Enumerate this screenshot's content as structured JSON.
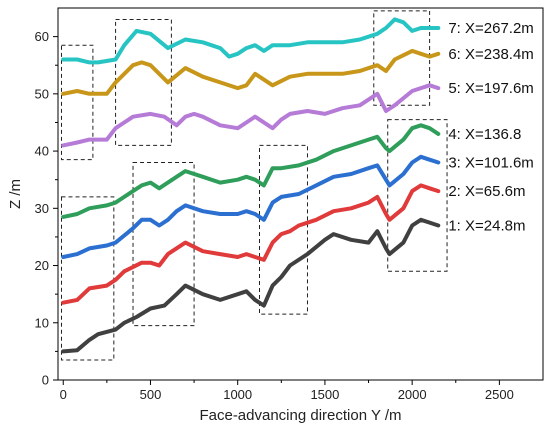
{
  "chart_data": {
    "type": "line",
    "xlabel": "Face-advancing direction Y /m",
    "ylabel": "Z /m",
    "xlim": [
      -30,
      2750
    ],
    "ylim": [
      0,
      65
    ],
    "xticks": [
      0,
      500,
      1000,
      1500,
      2000,
      2500
    ],
    "yticks": [
      0,
      10,
      20,
      30,
      40,
      50,
      60
    ],
    "legend_placement": "right, each label beside the end of its curve",
    "series": [
      {
        "name": "1: X=24.8m",
        "color": "#404040",
        "points": [
          [
            0,
            5
          ],
          [
            80,
            5.2
          ],
          [
            150,
            7
          ],
          [
            200,
            8
          ],
          [
            300,
            8.8
          ],
          [
            350,
            10
          ],
          [
            420,
            11
          ],
          [
            500,
            12.5
          ],
          [
            580,
            13
          ],
          [
            650,
            15
          ],
          [
            700,
            16.5
          ],
          [
            800,
            15
          ],
          [
            900,
            14
          ],
          [
            1000,
            15
          ],
          [
            1050,
            15.5
          ],
          [
            1100,
            14
          ],
          [
            1150,
            13
          ],
          [
            1200,
            16.5
          ],
          [
            1250,
            18
          ],
          [
            1300,
            20
          ],
          [
            1400,
            22
          ],
          [
            1500,
            24.5
          ],
          [
            1550,
            25.5
          ],
          [
            1650,
            24.5
          ],
          [
            1750,
            24
          ],
          [
            1800,
            26
          ],
          [
            1850,
            23
          ],
          [
            1870,
            22
          ],
          [
            1950,
            24
          ],
          [
            2000,
            27
          ],
          [
            2050,
            28
          ],
          [
            2100,
            27.5
          ],
          [
            2150,
            27
          ]
        ]
      },
      {
        "name": "2: X=65.6m",
        "color": "#e03a3a",
        "points": [
          [
            0,
            13.5
          ],
          [
            80,
            14
          ],
          [
            150,
            16
          ],
          [
            250,
            16.5
          ],
          [
            300,
            17.5
          ],
          [
            350,
            19
          ],
          [
            450,
            20.5
          ],
          [
            500,
            20.5
          ],
          [
            550,
            20
          ],
          [
            600,
            22
          ],
          [
            700,
            24
          ],
          [
            800,
            22.5
          ],
          [
            900,
            22
          ],
          [
            1000,
            21.5
          ],
          [
            1050,
            22
          ],
          [
            1100,
            21.5
          ],
          [
            1150,
            21
          ],
          [
            1200,
            24
          ],
          [
            1250,
            25.5
          ],
          [
            1300,
            26
          ],
          [
            1350,
            27
          ],
          [
            1450,
            28
          ],
          [
            1550,
            29.5
          ],
          [
            1650,
            30
          ],
          [
            1750,
            31
          ],
          [
            1800,
            32
          ],
          [
            1850,
            29
          ],
          [
            1870,
            28
          ],
          [
            1950,
            30
          ],
          [
            2000,
            33
          ],
          [
            2050,
            34
          ],
          [
            2100,
            33.5
          ],
          [
            2150,
            33
          ]
        ]
      },
      {
        "name": "3: X=101.6m",
        "color": "#2b6fd0",
        "points": [
          [
            0,
            21.5
          ],
          [
            80,
            22
          ],
          [
            150,
            23
          ],
          [
            250,
            23.5
          ],
          [
            300,
            24
          ],
          [
            400,
            26.5
          ],
          [
            450,
            28
          ],
          [
            500,
            28
          ],
          [
            550,
            27
          ],
          [
            600,
            28
          ],
          [
            650,
            29.5
          ],
          [
            700,
            30.5
          ],
          [
            800,
            29.5
          ],
          [
            900,
            29
          ],
          [
            1000,
            29
          ],
          [
            1050,
            29.5
          ],
          [
            1100,
            29
          ],
          [
            1150,
            28
          ],
          [
            1200,
            31
          ],
          [
            1250,
            32
          ],
          [
            1350,
            32.5
          ],
          [
            1450,
            34
          ],
          [
            1550,
            35.5
          ],
          [
            1650,
            36
          ],
          [
            1750,
            37
          ],
          [
            1800,
            37.5
          ],
          [
            1850,
            35
          ],
          [
            1870,
            34
          ],
          [
            1950,
            36
          ],
          [
            2000,
            38
          ],
          [
            2050,
            39
          ],
          [
            2100,
            38.5
          ],
          [
            2150,
            38
          ]
        ]
      },
      {
        "name": "4: X=136.8",
        "color": "#2e9e5a",
        "points": [
          [
            0,
            28.5
          ],
          [
            80,
            29
          ],
          [
            150,
            30
          ],
          [
            250,
            30.5
          ],
          [
            300,
            31
          ],
          [
            400,
            33
          ],
          [
            450,
            34
          ],
          [
            500,
            34.5
          ],
          [
            550,
            33.5
          ],
          [
            600,
            34.5
          ],
          [
            650,
            35.5
          ],
          [
            700,
            36.5
          ],
          [
            800,
            35.5
          ],
          [
            900,
            34.5
          ],
          [
            1000,
            35
          ],
          [
            1050,
            35.5
          ],
          [
            1100,
            35
          ],
          [
            1150,
            34
          ],
          [
            1200,
            37
          ],
          [
            1250,
            37
          ],
          [
            1350,
            37.5
          ],
          [
            1450,
            38.5
          ],
          [
            1550,
            40
          ],
          [
            1650,
            41
          ],
          [
            1750,
            42
          ],
          [
            1800,
            42.5
          ],
          [
            1850,
            40.5
          ],
          [
            1870,
            40
          ],
          [
            1950,
            42
          ],
          [
            2000,
            44
          ],
          [
            2050,
            44.5
          ],
          [
            2100,
            44
          ],
          [
            2150,
            43
          ]
        ]
      },
      {
        "name": "5: X=197.6m",
        "color": "#b57bd6",
        "points": [
          [
            0,
            41
          ],
          [
            80,
            41.5
          ],
          [
            150,
            42
          ],
          [
            250,
            42
          ],
          [
            300,
            44
          ],
          [
            400,
            46
          ],
          [
            500,
            46.5
          ],
          [
            580,
            46
          ],
          [
            650,
            44.5
          ],
          [
            700,
            46
          ],
          [
            750,
            46.5
          ],
          [
            800,
            46
          ],
          [
            900,
            44.5
          ],
          [
            1000,
            44
          ],
          [
            1050,
            45
          ],
          [
            1100,
            46
          ],
          [
            1200,
            44
          ],
          [
            1250,
            45.5
          ],
          [
            1300,
            46.5
          ],
          [
            1400,
            47
          ],
          [
            1500,
            46.5
          ],
          [
            1600,
            47.5
          ],
          [
            1700,
            48
          ],
          [
            1800,
            50
          ],
          [
            1850,
            47
          ],
          [
            1900,
            48
          ],
          [
            2000,
            50.5
          ],
          [
            2050,
            51
          ],
          [
            2100,
            51.5
          ],
          [
            2150,
            51
          ]
        ]
      },
      {
        "name": "6: X=238.4m",
        "color": "#c8971a",
        "points": [
          [
            0,
            50
          ],
          [
            80,
            50.5
          ],
          [
            150,
            50
          ],
          [
            250,
            50
          ],
          [
            300,
            52
          ],
          [
            400,
            55
          ],
          [
            450,
            55.5
          ],
          [
            500,
            55
          ],
          [
            600,
            52
          ],
          [
            700,
            54.5
          ],
          [
            800,
            53
          ],
          [
            900,
            52
          ],
          [
            1000,
            51
          ],
          [
            1050,
            51.5
          ],
          [
            1100,
            53.5
          ],
          [
            1200,
            51.5
          ],
          [
            1300,
            53
          ],
          [
            1400,
            53.5
          ],
          [
            1500,
            53.5
          ],
          [
            1600,
            53.5
          ],
          [
            1700,
            54
          ],
          [
            1800,
            55
          ],
          [
            1850,
            54
          ],
          [
            1900,
            56
          ],
          [
            2000,
            57.5
          ],
          [
            2050,
            57
          ],
          [
            2100,
            56.5
          ],
          [
            2150,
            57
          ]
        ]
      },
      {
        "name": "7: X=267.2m",
        "color": "#27c4c4",
        "points": [
          [
            0,
            56
          ],
          [
            80,
            56
          ],
          [
            150,
            55.5
          ],
          [
            200,
            55.5
          ],
          [
            300,
            56
          ],
          [
            350,
            58.5
          ],
          [
            420,
            61
          ],
          [
            500,
            60.5
          ],
          [
            600,
            58
          ],
          [
            700,
            59.5
          ],
          [
            800,
            59
          ],
          [
            900,
            58
          ],
          [
            950,
            56.5
          ],
          [
            1000,
            57
          ],
          [
            1050,
            58
          ],
          [
            1100,
            58.5
          ],
          [
            1150,
            57.5
          ],
          [
            1200,
            58.5
          ],
          [
            1300,
            58.5
          ],
          [
            1400,
            59
          ],
          [
            1500,
            59
          ],
          [
            1600,
            59
          ],
          [
            1700,
            59.5
          ],
          [
            1800,
            60.5
          ],
          [
            1850,
            61.5
          ],
          [
            1900,
            63
          ],
          [
            1950,
            62.5
          ],
          [
            2000,
            61
          ],
          [
            2050,
            61.5
          ],
          [
            2100,
            61.5
          ],
          [
            2150,
            61.5
          ]
        ]
      }
    ],
    "annotation_boxes": [
      {
        "x0": -10,
        "x1": 290,
        "y0": 3.5,
        "y1": 32
      },
      {
        "x0": 400,
        "x1": 750,
        "y0": 9.5,
        "y1": 38
      },
      {
        "x0": 1125,
        "x1": 1400,
        "y0": 11.5,
        "y1": 41
      },
      {
        "x0": 1860,
        "x1": 2200,
        "y0": 19,
        "y1": 45.5
      },
      {
        "x0": -10,
        "x1": 170,
        "y0": 38.5,
        "y1": 58.5
      },
      {
        "x0": 300,
        "x1": 620,
        "y0": 41,
        "y1": 63
      },
      {
        "x0": 1780,
        "x1": 2100,
        "y0": 48,
        "y1": 64.5
      }
    ]
  }
}
